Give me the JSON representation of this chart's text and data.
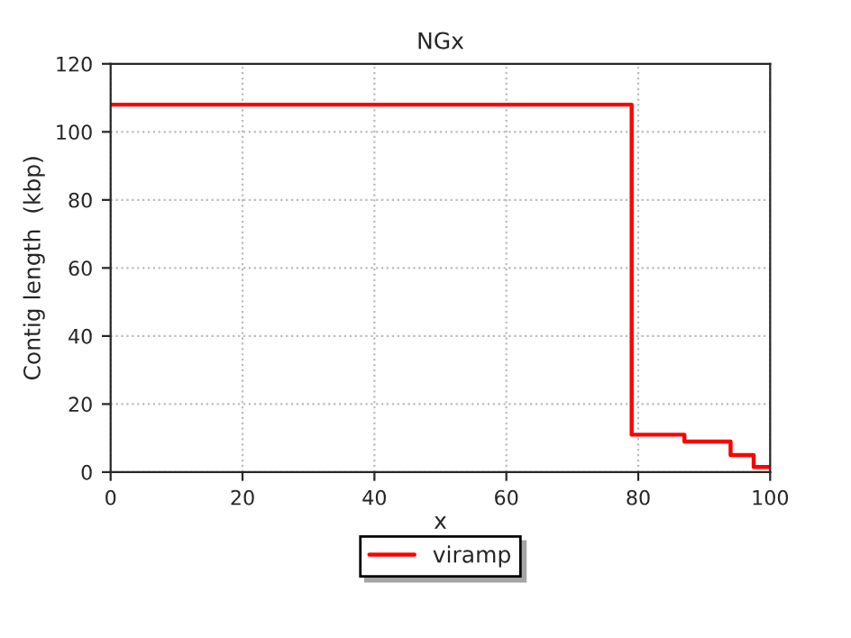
{
  "chart_data": {
    "type": "step",
    "title": "NGx",
    "xlabel": "x",
    "ylabel": "Contig length  (kbp)",
    "x": [
      0,
      79,
      87,
      94,
      97.5,
      100
    ],
    "series": [
      {
        "name": "viramp",
        "color": "#ff0000",
        "values": [
          108,
          11,
          9,
          5,
          1.5,
          1.5
        ]
      }
    ],
    "xlim": [
      0,
      100
    ],
    "xticks": [
      0,
      20,
      40,
      60,
      80,
      100
    ],
    "ylim": [
      0,
      120
    ],
    "yticks": [
      0,
      20,
      40,
      60,
      80,
      100,
      120
    ],
    "grid": true,
    "legend": "bottom"
  }
}
